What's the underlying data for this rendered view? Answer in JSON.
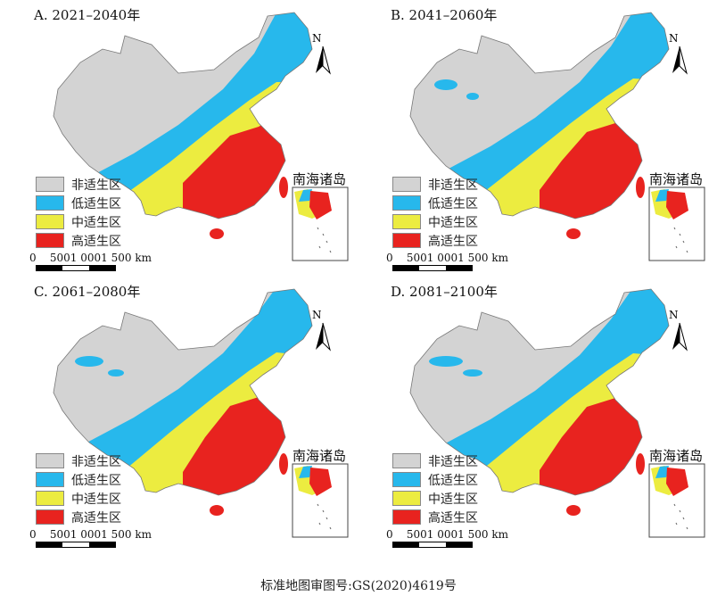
{
  "panels": [
    {
      "title": "A. 2021–2040年"
    },
    {
      "title": "B. 2041–2060年"
    },
    {
      "title": "C. 2061–2080年"
    },
    {
      "title": "D. 2081–2100年"
    }
  ],
  "legend": [
    {
      "label": "非适生区",
      "color": "#d3d3d3"
    },
    {
      "label": "低适生区",
      "color": "#27b8ec"
    },
    {
      "label": "中适生区",
      "color": "#ecec40"
    },
    {
      "label": "高适生区",
      "color": "#e8231f"
    }
  ],
  "inset_label": "南海诸岛",
  "north_label": "N",
  "scale_label": "0    5001 0001 500 km",
  "caption": "标准地图审图号:GS(2020)4619号"
}
